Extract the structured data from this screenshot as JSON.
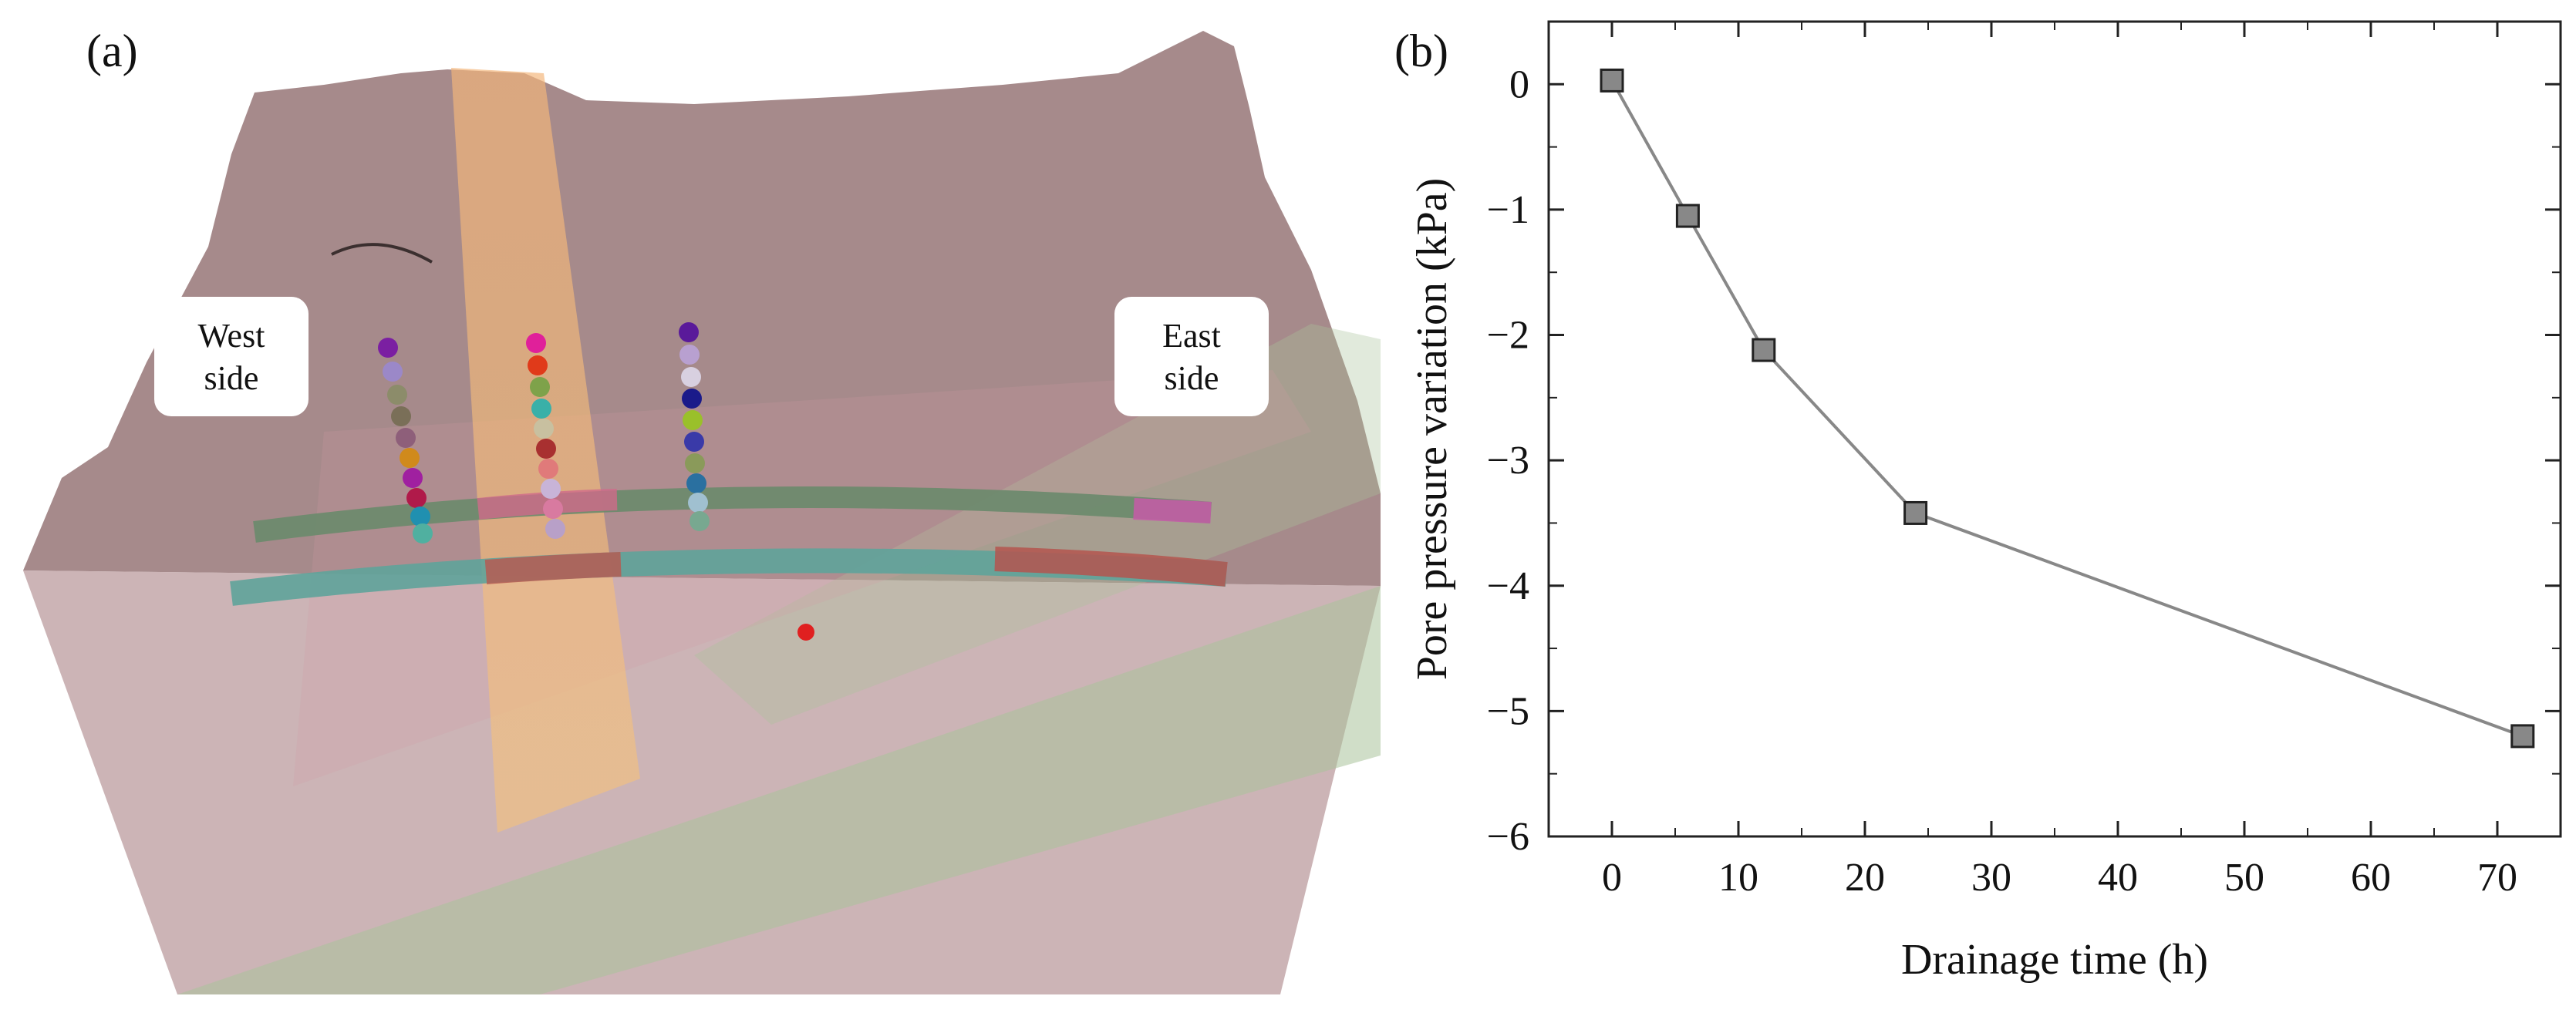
{
  "panel_a": {
    "label": "(a)",
    "west_label": "West\nside",
    "east_label": "East\nside"
  },
  "panel_b": {
    "label": "(b)"
  },
  "chart_data": {
    "type": "line",
    "xlabel": "Drainage time (h)",
    "ylabel": "Pore pressure variation (kPa)",
    "xlim": [
      -5,
      75
    ],
    "ylim": [
      -6,
      0.5
    ],
    "x_ticks": [
      0,
      10,
      20,
      30,
      40,
      50,
      60,
      70
    ],
    "y_ticks": [
      0,
      -1,
      -2,
      -3,
      -4,
      -5,
      -6
    ],
    "x_tick_labels": [
      "0",
      "10",
      "20",
      "30",
      "40",
      "50",
      "60",
      "70"
    ],
    "y_tick_labels": [
      "0",
      "−1",
      "−2",
      "−3",
      "−4",
      "−5",
      "−6"
    ],
    "grid": false,
    "series": [
      {
        "x": [
          0,
          6,
          12,
          24,
          72
        ],
        "y": [
          0.03,
          -1.05,
          -2.12,
          -3.42,
          -5.2
        ],
        "marker": "square",
        "color": "#888888"
      }
    ]
  }
}
